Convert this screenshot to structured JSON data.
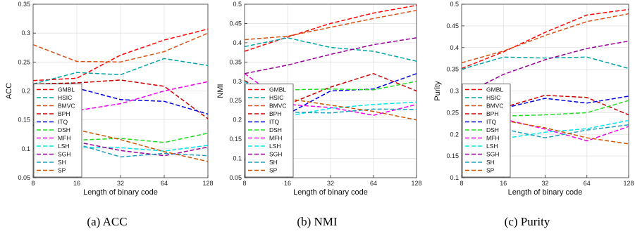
{
  "captions": [
    "(a) ACC",
    "(b) NMI",
    "(c) Purity"
  ],
  "chart_data": [
    {
      "type": "line",
      "title": "",
      "xlabel": "Length of binary code",
      "ylabel": "ACC",
      "x": [
        8,
        16,
        32,
        64,
        128
      ],
      "xscale": "log2",
      "ylim": [
        0.05,
        0.35
      ],
      "yticks": [
        0.05,
        0.1,
        0.15,
        0.2,
        0.25,
        0.3,
        0.35
      ],
      "ytick_labels": [
        "0.05",
        "0.1",
        "0.15",
        "0.2",
        "0.25",
        "0.3",
        "0.35"
      ],
      "grid": true,
      "legend": "bottom-left",
      "series": [
        {
          "name": "GMBL",
          "values": [
            0.218,
            0.222,
            0.262,
            0.288,
            0.307
          ],
          "color": "#ff0000"
        },
        {
          "name": "HSIC",
          "values": [
            0.212,
            0.232,
            0.228,
            0.256,
            0.244
          ],
          "color": "#00a5a5"
        },
        {
          "name": "BMVC",
          "values": [
            0.28,
            0.251,
            0.25,
            0.268,
            0.3
          ],
          "color": "#d95319"
        },
        {
          "name": "BPH",
          "values": [
            0.212,
            0.214,
            0.219,
            0.208,
            0.152
          ],
          "color": "#cc0000"
        },
        {
          "name": "ITQ",
          "values": [
            0.14,
            0.205,
            0.185,
            0.182,
            0.16
          ],
          "color": "#0000e0"
        },
        {
          "name": "DSH",
          "values": [
            0.125,
            0.115,
            0.118,
            0.111,
            0.127
          ],
          "color": "#22dd22"
        },
        {
          "name": "MFH",
          "values": [
            0.11,
            0.166,
            0.178,
            0.2,
            0.216
          ],
          "color": "#ee00ee"
        },
        {
          "name": "LSH",
          "values": [
            0.093,
            0.103,
            0.102,
            0.096,
            0.106
          ],
          "color": "#00e5ee"
        },
        {
          "name": "SGH",
          "values": [
            0.11,
            0.112,
            0.097,
            0.088,
            0.103
          ],
          "color": "#990099"
        },
        {
          "name": "SH",
          "values": [
            0.11,
            0.108,
            0.086,
            0.092,
            0.088
          ],
          "color": "#1f9fbf"
        },
        {
          "name": "SP",
          "values": [
            0.145,
            0.133,
            0.116,
            0.095,
            0.078
          ],
          "color": "#cc5500"
        }
      ]
    },
    {
      "type": "line",
      "title": "",
      "xlabel": "Length of binary code",
      "ylabel": "NMI",
      "x": [
        8,
        16,
        32,
        64,
        128
      ],
      "xscale": "log2",
      "ylim": [
        0.05,
        0.5
      ],
      "yticks": [
        0.05,
        0.1,
        0.15,
        0.2,
        0.25,
        0.3,
        0.35,
        0.4,
        0.45,
        0.5
      ],
      "ytick_labels": [
        "0.05",
        "0.1",
        "0.15",
        "0.2",
        "0.25",
        "0.3",
        "0.35",
        "0.4",
        "0.45",
        "0.5"
      ],
      "grid": true,
      "legend": "bottom-left",
      "series": [
        {
          "name": "GMBL",
          "values": [
            0.378,
            0.415,
            0.45,
            0.477,
            0.497
          ],
          "color": "#ff0000"
        },
        {
          "name": "HSIC",
          "values": [
            0.39,
            0.413,
            0.388,
            0.378,
            0.352
          ],
          "color": "#00a5a5"
        },
        {
          "name": "BMVC",
          "values": [
            0.408,
            0.417,
            0.44,
            0.463,
            0.484
          ],
          "color": "#d95319"
        },
        {
          "name": "BPH",
          "values": [
            0.302,
            0.24,
            0.285,
            0.32,
            0.275
          ],
          "color": "#cc0000"
        },
        {
          "name": "ITQ",
          "values": [
            0.095,
            0.215,
            0.275,
            0.28,
            0.32
          ],
          "color": "#0000e0"
        },
        {
          "name": "DSH",
          "values": [
            0.28,
            0.278,
            0.28,
            0.278,
            0.3
          ],
          "color": "#22dd22"
        },
        {
          "name": "MFH",
          "values": [
            0.32,
            0.24,
            0.232,
            0.212,
            0.24
          ],
          "color": "#ee00ee"
        },
        {
          "name": "LSH",
          "values": [
            0.3,
            0.21,
            0.23,
            0.24,
            0.246
          ],
          "color": "#00e5ee"
        },
        {
          "name": "SGH",
          "values": [
            0.32,
            0.342,
            0.37,
            0.395,
            0.413
          ],
          "color": "#990099"
        },
        {
          "name": "SH",
          "values": [
            0.215,
            0.22,
            0.218,
            0.228,
            0.227
          ],
          "color": "#1f9fbf"
        },
        {
          "name": "SP",
          "values": [
            0.27,
            0.255,
            0.238,
            0.222,
            0.2
          ],
          "color": "#cc5500"
        }
      ]
    },
    {
      "type": "line",
      "title": "",
      "xlabel": "Length of binary code",
      "ylabel": "Purity",
      "x": [
        8,
        16,
        32,
        64,
        128
      ],
      "xscale": "log2",
      "ylim": [
        0.1,
        0.5
      ],
      "yticks": [
        0.1,
        0.15,
        0.2,
        0.25,
        0.3,
        0.35,
        0.4,
        0.45,
        0.5
      ],
      "ytick_labels": [
        "0.1",
        "0.15",
        "0.2",
        "0.25",
        "0.3",
        "0.35",
        "0.4",
        "0.45",
        "0.5"
      ],
      "grid": true,
      "legend": "bottom-left",
      "series": [
        {
          "name": "GMBL",
          "values": [
            0.352,
            0.39,
            0.435,
            0.475,
            0.488
          ],
          "color": "#ff0000"
        },
        {
          "name": "HSIC",
          "values": [
            0.35,
            0.378,
            0.376,
            0.378,
            0.352
          ],
          "color": "#00a5a5"
        },
        {
          "name": "BMVC",
          "values": [
            0.365,
            0.392,
            0.428,
            0.46,
            0.478
          ],
          "color": "#d95319"
        },
        {
          "name": "BPH",
          "values": [
            0.23,
            0.262,
            0.29,
            0.285,
            0.245
          ],
          "color": "#cc0000"
        },
        {
          "name": "ITQ",
          "values": [
            0.245,
            0.26,
            0.283,
            0.272,
            0.288
          ],
          "color": "#0000e0"
        },
        {
          "name": "DSH",
          "values": [
            0.24,
            0.242,
            0.245,
            0.25,
            0.278
          ],
          "color": "#22dd22"
        },
        {
          "name": "MFH",
          "values": [
            0.262,
            0.235,
            0.212,
            0.185,
            0.218
          ],
          "color": "#ee00ee"
        },
        {
          "name": "LSH",
          "values": [
            0.185,
            0.19,
            0.205,
            0.213,
            0.232
          ],
          "color": "#00e5ee"
        },
        {
          "name": "SGH",
          "values": [
            0.29,
            0.338,
            0.372,
            0.398,
            0.415
          ],
          "color": "#990099"
        },
        {
          "name": "SH",
          "values": [
            0.225,
            0.212,
            0.192,
            0.21,
            0.222
          ],
          "color": "#1f9fbf"
        },
        {
          "name": "SP",
          "values": [
            0.215,
            0.232,
            0.215,
            0.192,
            0.178
          ],
          "color": "#cc5500"
        }
      ]
    }
  ]
}
